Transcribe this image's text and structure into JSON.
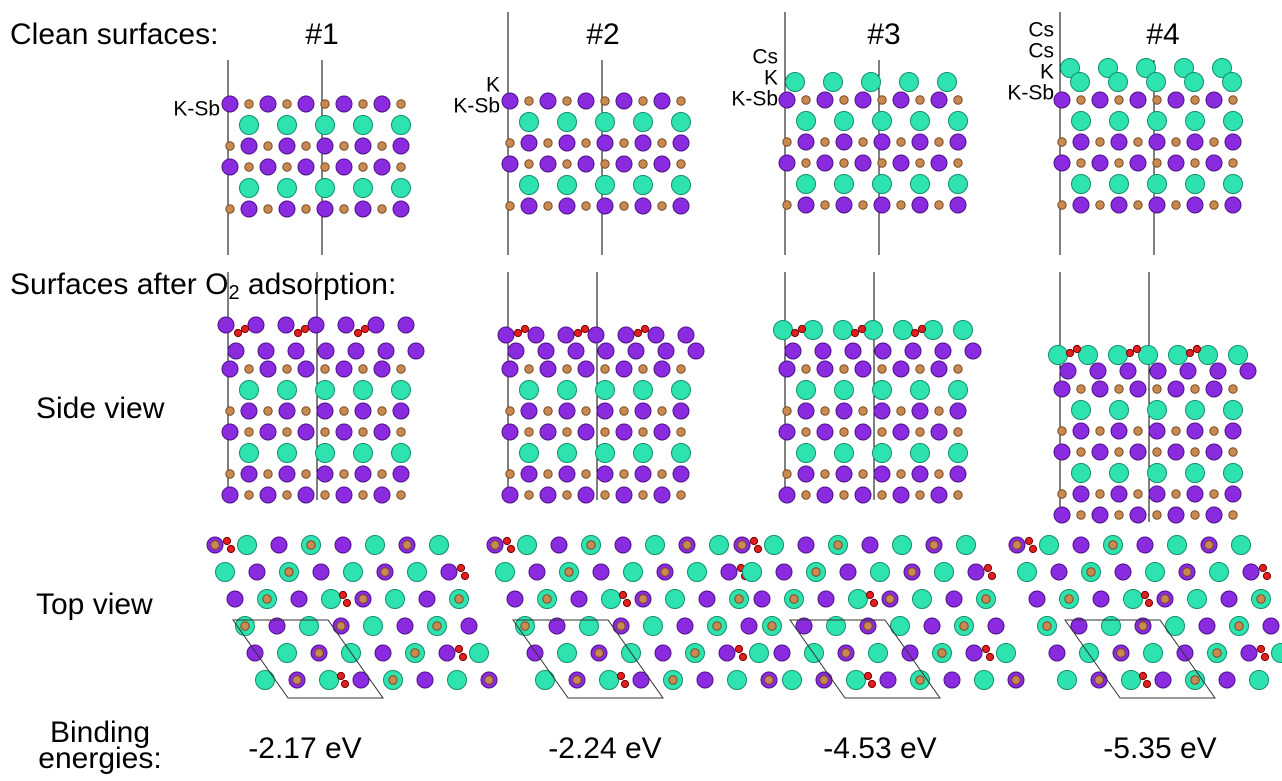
{
  "header": {
    "clean_label": "Clean surfaces:",
    "adsorption_label": {
      "main": "Surfaces after O",
      "subscript": "2",
      "end": " adsorption:"
    }
  },
  "columns": [
    "#1",
    "#2",
    "#3",
    "#4"
  ],
  "layer_labels": [
    [
      "K-Sb"
    ],
    [
      "K",
      "K-Sb"
    ],
    [
      "Cs",
      "K",
      "K-Sb"
    ],
    [
      "Cs",
      "Cs",
      "K",
      "K-Sb"
    ]
  ],
  "rows": {
    "side": "Side view",
    "top": "Top view"
  },
  "binding": {
    "label_line1": "Binding",
    "label_line2": "energies:",
    "values": [
      "-2.17 eV",
      "-2.24 eV",
      "-4.53 eV",
      "-5.35 eV"
    ]
  }
}
